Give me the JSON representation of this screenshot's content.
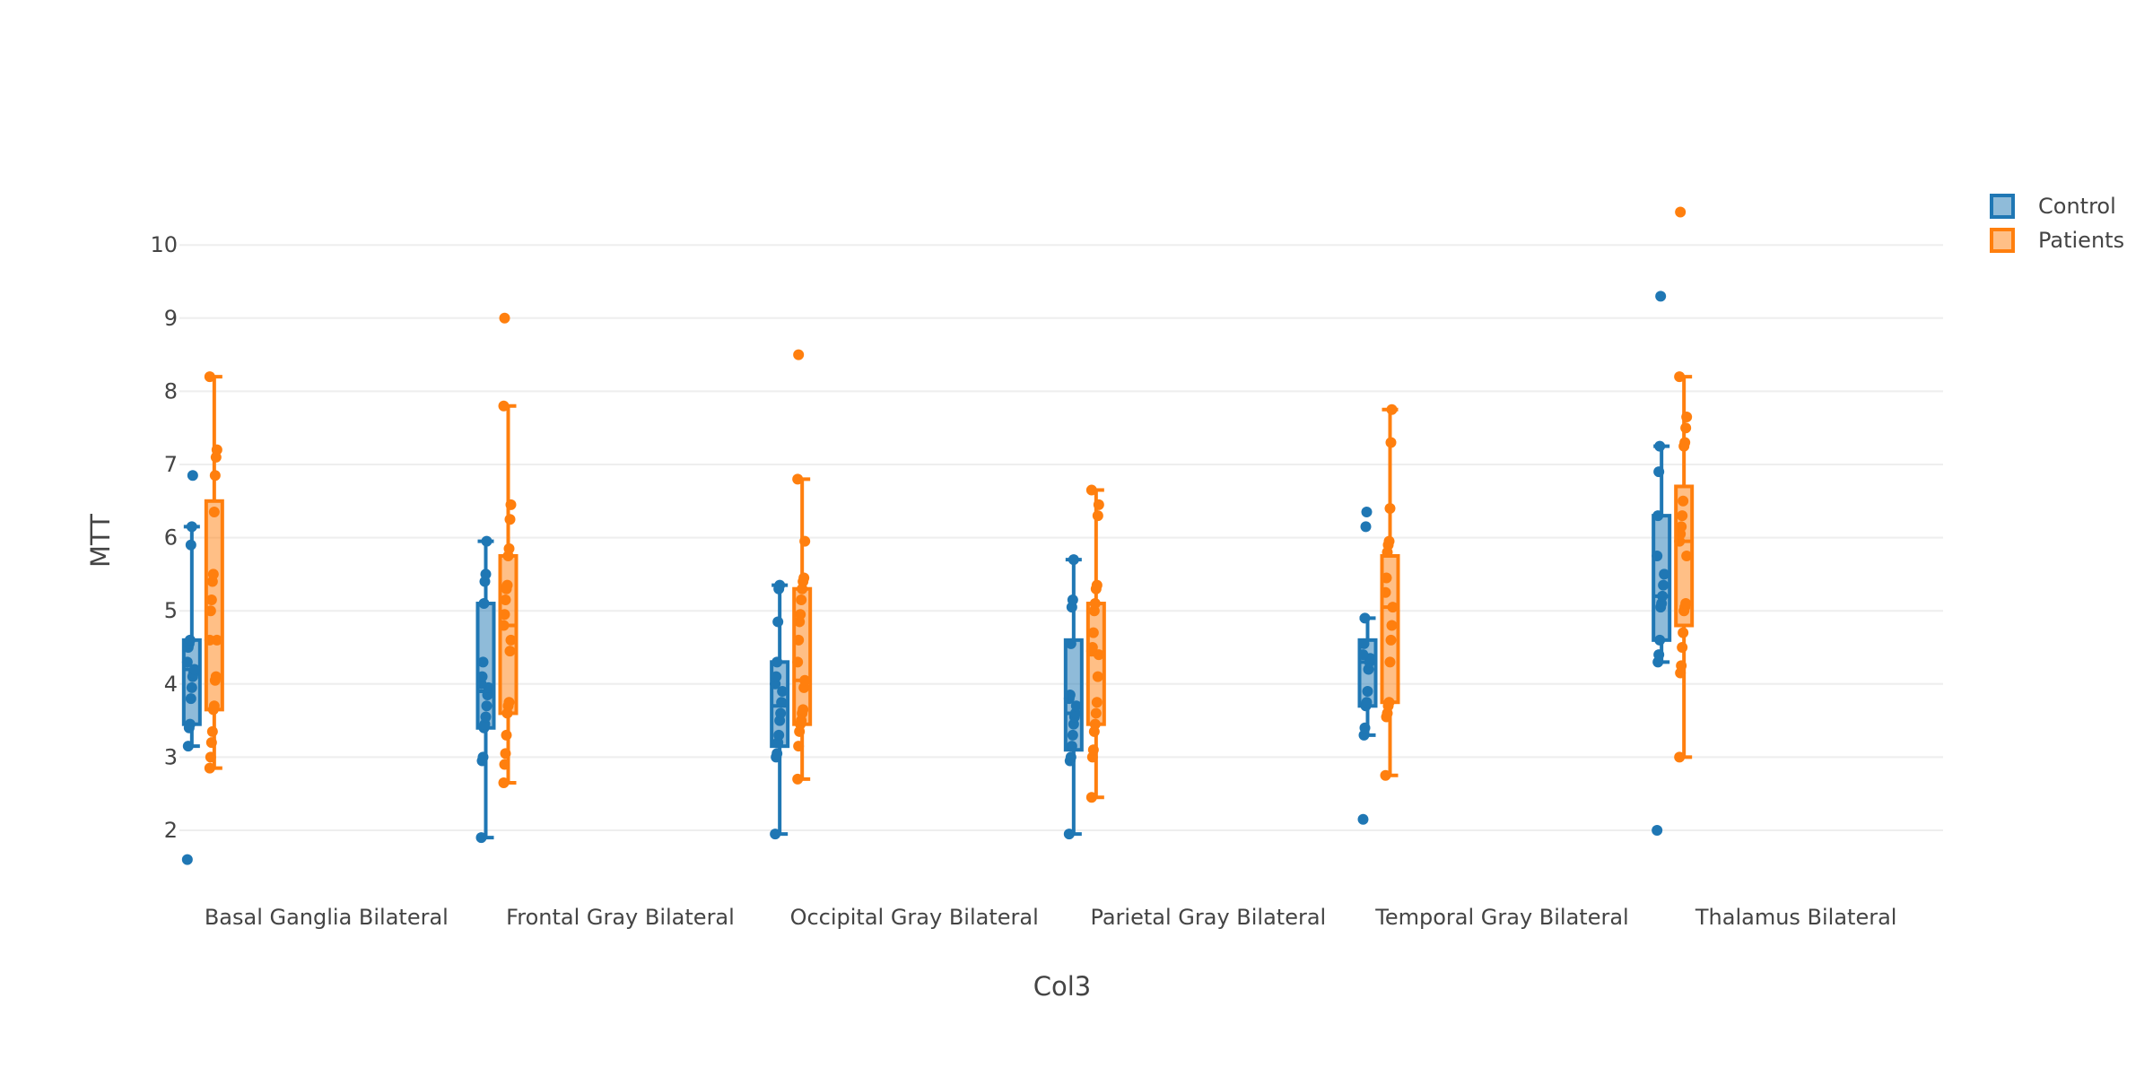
{
  "chart_data": {
    "type": "box",
    "xlabel": "Col3",
    "ylabel": "MTT",
    "ylim": [
      1.4,
      10.9
    ],
    "yticks": [
      2,
      3,
      4,
      5,
      6,
      7,
      8,
      9,
      10
    ],
    "grid": true,
    "legend_position": "top-right",
    "categories": [
      "Basal Ganglia Bilateral",
      "Frontal Gray Bilateral",
      "Occipital Gray Bilateral",
      "Parietal Gray Bilateral",
      "Temporal Gray Bilateral",
      "Thalamus Bilateral"
    ],
    "series": [
      {
        "name": "Control",
        "color": "#1f77b4",
        "boxes": [
          {
            "q1": 3.45,
            "median": 4.2,
            "q3": 4.6,
            "lower": 3.15,
            "upper": 6.15
          },
          {
            "q1": 3.4,
            "median": 3.9,
            "q3": 5.1,
            "lower": 1.9,
            "upper": 5.95
          },
          {
            "q1": 3.15,
            "median": 3.7,
            "q3": 4.3,
            "lower": 1.95,
            "upper": 5.35
          },
          {
            "q1": 3.1,
            "median": 3.6,
            "q3": 4.6,
            "lower": 1.95,
            "upper": 5.7
          },
          {
            "q1": 3.7,
            "median": 4.3,
            "q3": 4.6,
            "lower": 3.3,
            "upper": 4.9
          },
          {
            "q1": 4.6,
            "median": 5.2,
            "q3": 6.3,
            "lower": 4.3,
            "upper": 7.25
          }
        ],
        "points": [
          [
            1.6,
            3.15,
            3.4,
            3.45,
            3.8,
            3.95,
            4.1,
            4.15,
            4.2,
            4.3,
            4.5,
            4.55,
            4.6,
            5.9,
            6.15,
            6.85
          ],
          [
            1.9,
            2.95,
            3.0,
            3.4,
            3.45,
            3.55,
            3.7,
            3.85,
            3.95,
            4.0,
            4.1,
            4.3,
            5.1,
            5.4,
            5.5,
            5.95
          ],
          [
            1.95,
            3.0,
            3.05,
            3.2,
            3.3,
            3.5,
            3.6,
            3.75,
            3.9,
            4.0,
            4.1,
            4.3,
            4.85,
            5.3,
            5.35
          ],
          [
            1.95,
            2.95,
            3.0,
            3.15,
            3.3,
            3.45,
            3.55,
            3.6,
            3.7,
            3.8,
            3.85,
            4.55,
            5.05,
            5.15,
            5.7
          ],
          [
            2.15,
            3.3,
            3.4,
            3.7,
            3.75,
            3.9,
            4.2,
            4.3,
            4.35,
            4.4,
            4.55,
            4.9,
            6.15,
            6.35
          ],
          [
            2.0,
            4.3,
            4.4,
            4.6,
            5.05,
            5.1,
            5.2,
            5.35,
            5.5,
            5.75,
            6.3,
            6.9,
            7.25,
            9.3
          ]
        ]
      },
      {
        "name": "Patients",
        "color": "#ff7f0e",
        "boxes": [
          {
            "q1": 3.65,
            "median": 4.6,
            "q3": 6.5,
            "lower": 2.85,
            "upper": 8.2
          },
          {
            "q1": 3.6,
            "median": 4.8,
            "q3": 5.75,
            "lower": 2.65,
            "upper": 7.8
          },
          {
            "q1": 3.45,
            "median": 4.05,
            "q3": 5.3,
            "lower": 2.7,
            "upper": 6.8
          },
          {
            "q1": 3.45,
            "median": 4.4,
            "q3": 5.1,
            "lower": 2.45,
            "upper": 6.65
          },
          {
            "q1": 3.75,
            "median": 5.05,
            "q3": 5.75,
            "lower": 2.75,
            "upper": 7.75
          },
          {
            "q1": 4.8,
            "median": 5.95,
            "q3": 6.7,
            "lower": 3.0,
            "upper": 8.2
          }
        ],
        "points": [
          [
            2.85,
            3.0,
            3.2,
            3.35,
            3.65,
            3.7,
            4.05,
            4.1,
            4.6,
            4.6,
            5.0,
            5.15,
            5.4,
            5.5,
            6.35,
            6.85,
            7.1,
            7.2,
            8.2
          ],
          [
            2.65,
            2.9,
            3.05,
            3.3,
            3.6,
            3.7,
            3.75,
            4.45,
            4.6,
            4.8,
            4.95,
            5.15,
            5.3,
            5.35,
            5.75,
            5.85,
            6.25,
            6.45,
            7.8,
            9.0
          ],
          [
            2.7,
            3.15,
            3.35,
            3.45,
            3.5,
            3.6,
            3.65,
            3.95,
            4.05,
            4.3,
            4.6,
            4.85,
            4.95,
            5.15,
            5.3,
            5.4,
            5.45,
            5.95,
            6.8,
            8.5
          ],
          [
            2.45,
            3.0,
            3.1,
            3.35,
            3.45,
            3.6,
            3.75,
            4.1,
            4.4,
            4.45,
            4.5,
            4.7,
            5.0,
            5.1,
            5.3,
            5.35,
            6.3,
            6.45,
            6.65
          ],
          [
            2.75,
            3.55,
            3.6,
            3.7,
            3.75,
            4.3,
            4.6,
            4.8,
            5.05,
            5.25,
            5.45,
            5.8,
            5.9,
            5.95,
            6.4,
            7.3,
            7.75
          ],
          [
            3.0,
            4.15,
            4.25,
            4.5,
            4.7,
            5.0,
            5.05,
            5.1,
            5.75,
            5.95,
            6.05,
            6.15,
            6.3,
            6.5,
            7.25,
            7.3,
            7.5,
            7.65,
            8.2,
            10.45
          ]
        ]
      }
    ]
  }
}
